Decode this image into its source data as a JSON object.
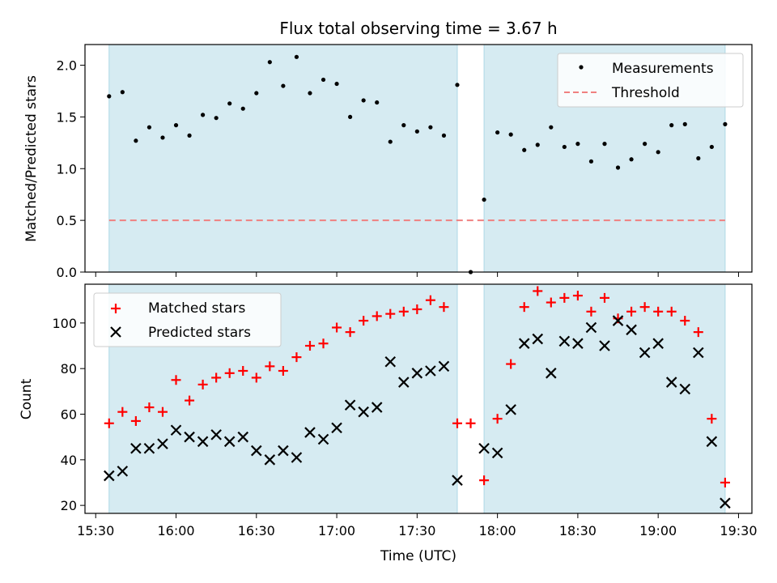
{
  "chart_data": {
    "title": "Flux total observing time = 3.67 h",
    "xlabel": "Time (UTC)",
    "xlim": [
      "15:26",
      "19:35"
    ],
    "xticks": [
      "15:30",
      "16:00",
      "16:30",
      "17:00",
      "17:30",
      "18:00",
      "18:30",
      "19:00",
      "19:30"
    ],
    "shaded_intervals": [
      [
        "15:35",
        "17:45"
      ],
      [
        "17:55",
        "19:25"
      ]
    ],
    "shade_color": "#add8e6",
    "x": [
      "15:35",
      "15:40",
      "15:45",
      "15:50",
      "15:55",
      "16:00",
      "16:05",
      "16:10",
      "16:15",
      "16:20",
      "16:25",
      "16:30",
      "16:35",
      "16:40",
      "16:45",
      "16:50",
      "16:55",
      "17:00",
      "17:05",
      "17:10",
      "17:15",
      "17:20",
      "17:25",
      "17:30",
      "17:35",
      "17:40",
      "17:45",
      "17:50",
      "17:55",
      "18:00",
      "18:05",
      "18:10",
      "18:15",
      "18:20",
      "18:25",
      "18:30",
      "18:35",
      "18:40",
      "18:45",
      "18:50",
      "18:55",
      "19:00",
      "19:05",
      "19:10",
      "19:15",
      "19:20",
      "19:25"
    ],
    "panels": [
      {
        "type": "scatter",
        "ylabel": "Matched/Predicted stars",
        "ylim": [
          0,
          2.2
        ],
        "yticks": [
          "0.0",
          "0.5",
          "1.0",
          "1.5",
          "2.0"
        ],
        "legend_position": "top-right",
        "series": [
          {
            "name": "Measurements",
            "marker": "dot",
            "color": "#000000",
            "values": [
              1.7,
              1.74,
              1.27,
              1.4,
              1.3,
              1.42,
              1.32,
              1.52,
              1.49,
              1.63,
              1.58,
              1.73,
              2.03,
              1.8,
              2.08,
              1.73,
              1.86,
              1.82,
              1.5,
              1.66,
              1.64,
              1.26,
              1.42,
              1.36,
              1.4,
              1.32,
              1.81,
              0.0,
              0.7,
              1.35,
              1.33,
              1.18,
              1.23,
              1.4,
              1.21,
              1.24,
              1.07,
              1.24,
              1.01,
              1.09,
              1.24,
              1.16,
              1.42,
              1.43,
              1.1,
              1.21,
              1.43
            ]
          },
          {
            "name": "Threshold",
            "marker": "dashed-line",
            "color": "#f08080",
            "value": 0.5,
            "from": "15:35",
            "to": "19:25"
          }
        ]
      },
      {
        "type": "scatter",
        "ylabel": "Count",
        "ylim": [
          16.5,
          117
        ],
        "yticks": [
          "20",
          "40",
          "60",
          "80",
          "100"
        ],
        "legend_position": "top-left",
        "series": [
          {
            "name": "Matched stars",
            "marker": "plus",
            "color": "#ff0000",
            "values": [
              56,
              61,
              57,
              63,
              61,
              75,
              66,
              73,
              76,
              78,
              79,
              76,
              81,
              79,
              85,
              90,
              91,
              98,
              96,
              101,
              103,
              104,
              105,
              106,
              110,
              107,
              56,
              56,
              31,
              58,
              82,
              107,
              114,
              109,
              111,
              112,
              105,
              111,
              102,
              105,
              107,
              105,
              105,
              101,
              96,
              58,
              30
            ]
          },
          {
            "name": "Predicted stars",
            "marker": "x",
            "color": "#000000",
            "values": [
              33,
              35,
              45,
              45,
              47,
              53,
              50,
              48,
              51,
              48,
              50,
              44,
              40,
              44,
              41,
              52,
              49,
              54,
              64,
              61,
              63,
              83,
              74,
              78,
              79,
              81,
              31,
              null,
              45,
              43,
              62,
              91,
              93,
              78,
              92,
              91,
              98,
              90,
              101,
              97,
              87,
              91,
              74,
              71,
              87,
              48,
              21
            ]
          }
        ]
      }
    ]
  }
}
